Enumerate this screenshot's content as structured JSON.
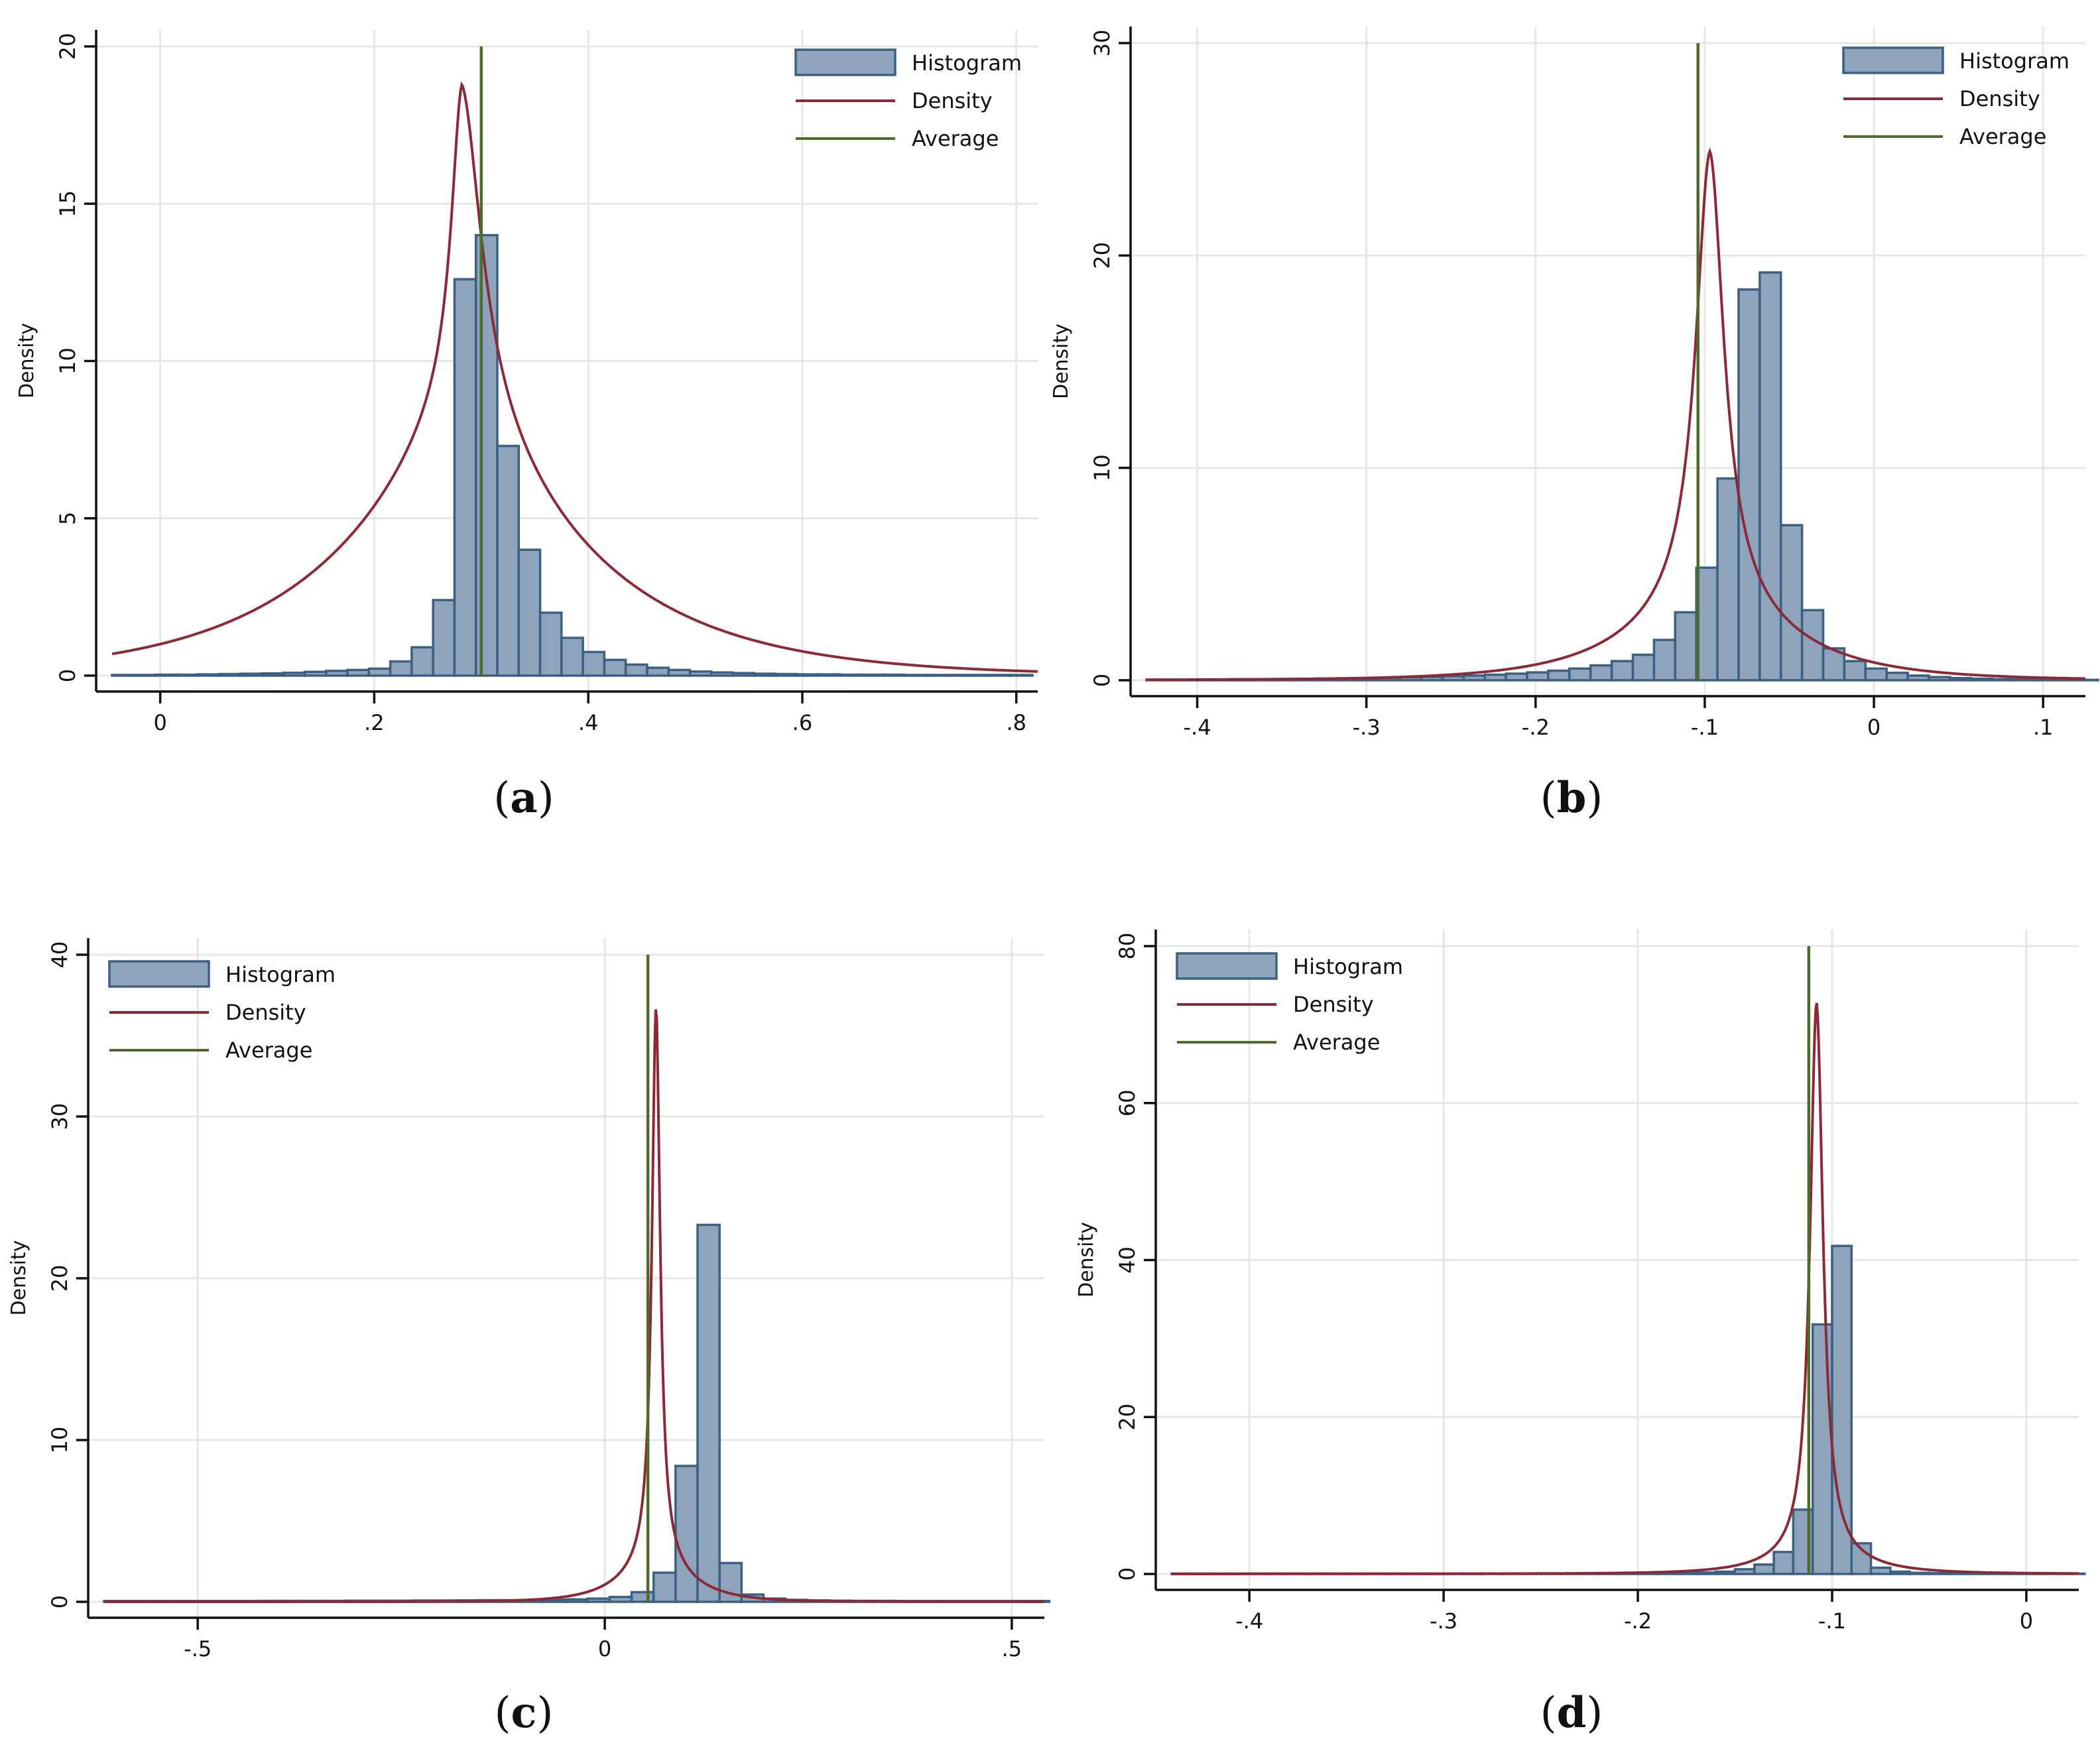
{
  "figure": {
    "panels": [
      "(a)",
      "(b)",
      "(c)",
      "(d)"
    ]
  },
  "legend_labels": [
    "Histogram",
    "Density",
    "Average"
  ],
  "colors": {
    "bar_fill": "#8ea4bc",
    "bar_stroke": "#3d5f82",
    "density": "#8b2a36",
    "average": "#4f6b2b",
    "grid": "#e6e6e6",
    "axis": "#111111"
  },
  "chart_data": [
    {
      "type": "bar",
      "panel": "a",
      "caption_letter": "a",
      "title": "",
      "xlabel": "",
      "ylabel": "Density",
      "xlim": [
        -0.045,
        0.82
      ],
      "ylim": [
        0,
        20
      ],
      "xticks": [
        0,
        0.2,
        0.4,
        0.6,
        0.8
      ],
      "xtick_labels": [
        "0",
        ".2",
        ".4",
        ".6",
        ".8"
      ],
      "yticks": [
        0,
        5,
        10,
        15,
        20
      ],
      "ytick_labels": [
        "0",
        "5",
        "10",
        "15",
        "20"
      ],
      "legend_position": "top-right",
      "bin_start": -0.045,
      "bin_width": 0.02,
      "values": [
        0.02,
        0.02,
        0.03,
        0.03,
        0.04,
        0.05,
        0.06,
        0.07,
        0.09,
        0.12,
        0.15,
        0.18,
        0.22,
        0.45,
        0.9,
        2.4,
        12.6,
        14.0,
        7.3,
        4.0,
        2.0,
        1.2,
        0.75,
        0.5,
        0.35,
        0.25,
        0.18,
        0.13,
        0.1,
        0.08,
        0.06,
        0.05,
        0.04,
        0.04,
        0.03,
        0.03,
        0.03,
        0.02,
        0.02,
        0.02,
        0.02,
        0.02,
        0.02
      ],
      "density": {
        "peak_x": 0.282,
        "peak_y": 18.8,
        "left_width": 0.012,
        "right_width": 0.022,
        "tail": 0.55,
        "tail_width": 0.12,
        "amp_scale": 1.0
      },
      "average": 0.3
    },
    {
      "type": "bar",
      "panel": "b",
      "caption_letter": "b",
      "title": "",
      "xlabel": "",
      "ylabel": "Density",
      "xlim": [
        -0.43,
        0.125
      ],
      "ylim": [
        0,
        30
      ],
      "xticks": [
        -0.4,
        -0.3,
        -0.2,
        -0.1,
        0,
        0.1
      ],
      "xtick_labels": [
        "-.4",
        "-.3",
        "-.2",
        "-.1",
        "0",
        ".1"
      ],
      "yticks": [
        0,
        10,
        20,
        30
      ],
      "ytick_labels": [
        "0",
        "10",
        "20",
        "30"
      ],
      "legend_position": "top-right",
      "bin_start": -0.43,
      "bin_width": 0.0125,
      "values": [
        0.03,
        0.03,
        0.04,
        0.04,
        0.05,
        0.05,
        0.06,
        0.07,
        0.08,
        0.09,
        0.1,
        0.12,
        0.14,
        0.16,
        0.19,
        0.22,
        0.26,
        0.31,
        0.37,
        0.45,
        0.55,
        0.7,
        0.9,
        1.2,
        1.9,
        3.2,
        5.3,
        9.5,
        18.4,
        19.2,
        7.3,
        3.3,
        1.5,
        0.9,
        0.55,
        0.35,
        0.22,
        0.15,
        0.1,
        0.07,
        0.05,
        0.04,
        0.03,
        0.03,
        0.02
      ],
      "density": {
        "peak_x": -0.097,
        "peak_y": 24.9,
        "left_width": 0.01,
        "right_width": 0.01,
        "tail": 0.22,
        "tail_width": 0.045,
        "amp_scale": 1.0
      },
      "average": -0.104
    },
    {
      "type": "bar",
      "panel": "c",
      "caption_letter": "c",
      "title": "",
      "xlabel": "",
      "ylabel": "Density",
      "xlim": [
        -0.615,
        0.54
      ],
      "ylim": [
        0,
        40
      ],
      "xticks": [
        -0.5,
        0,
        0.5
      ],
      "xtick_labels": [
        "-.5",
        "0",
        ".5"
      ],
      "yticks": [
        0,
        10,
        20,
        30,
        40
      ],
      "ytick_labels": [
        "0",
        "10",
        "20",
        "30",
        "40"
      ],
      "legend_position": "top-left",
      "bin_start": -0.615,
      "bin_width": 0.027,
      "values": [
        0.05,
        0.05,
        0.05,
        0.05,
        0.05,
        0.05,
        0.05,
        0.06,
        0.06,
        0.06,
        0.06,
        0.07,
        0.07,
        0.07,
        0.08,
        0.08,
        0.09,
        0.1,
        0.1,
        0.11,
        0.13,
        0.15,
        0.2,
        0.3,
        0.6,
        1.8,
        8.4,
        23.3,
        2.4,
        0.45,
        0.2,
        0.12,
        0.09,
        0.07,
        0.06,
        0.06,
        0.05,
        0.05,
        0.05,
        0.05,
        0.05,
        0.05,
        0.05
      ],
      "density": {
        "peak_x": 0.063,
        "peak_y": 36.8,
        "left_width": 0.006,
        "right_width": 0.006,
        "tail": 0.1,
        "tail_width": 0.04,
        "amp_scale": 1.0
      },
      "average": 0.053
    },
    {
      "type": "bar",
      "panel": "d",
      "caption_letter": "d",
      "title": "",
      "xlabel": "",
      "ylabel": "Density",
      "xlim": [
        -0.44,
        0.027
      ],
      "ylim": [
        0,
        80
      ],
      "xticks": [
        -0.4,
        -0.3,
        -0.2,
        -0.1,
        0
      ],
      "xtick_labels": [
        "-.4",
        "-.3",
        "-.2",
        "-.1",
        "0"
      ],
      "yticks": [
        0,
        20,
        40,
        60,
        80
      ],
      "ytick_labels": [
        "0",
        "20",
        "40",
        "60",
        "80"
      ],
      "legend_position": "top-left",
      "bin_start": -0.44,
      "bin_width": 0.01,
      "values": [
        0.05,
        0.05,
        0.05,
        0.05,
        0.05,
        0.05,
        0.05,
        0.05,
        0.05,
        0.05,
        0.05,
        0.05,
        0.05,
        0.05,
        0.05,
        0.05,
        0.05,
        0.05,
        0.06,
        0.06,
        0.06,
        0.06,
        0.07,
        0.08,
        0.09,
        0.1,
        0.13,
        0.18,
        0.3,
        0.6,
        1.2,
        2.8,
        8.2,
        31.8,
        41.8,
        3.9,
        0.8,
        0.3,
        0.15,
        0.1,
        0.08,
        0.07,
        0.06,
        0.05,
        0.05,
        0.05,
        0.05
      ],
      "density": {
        "peak_x": -0.108,
        "peak_y": 72.8,
        "left_width": 0.004,
        "right_width": 0.004,
        "tail": 0.05,
        "tail_width": 0.02,
        "amp_scale": 1.0
      },
      "average": -0.112
    }
  ]
}
